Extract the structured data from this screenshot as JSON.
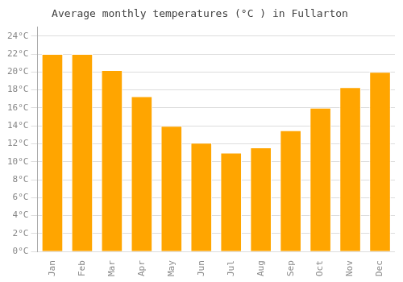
{
  "chart_data": {
    "type": "bar",
    "title": "Average monthly temperatures (°C ) in Fullarton",
    "categories": [
      "Jan",
      "Feb",
      "Mar",
      "Apr",
      "May",
      "Jun",
      "Jul",
      "Aug",
      "Sep",
      "Oct",
      "Nov",
      "Dec"
    ],
    "values": [
      22.0,
      22.0,
      20.2,
      17.3,
      14.0,
      12.1,
      11.0,
      11.6,
      13.5,
      16.0,
      18.3,
      20.0
    ],
    "color": "#FFA500",
    "ylim": [
      0,
      25
    ],
    "yticks": [
      {
        "value": 0,
        "label": "0°C"
      },
      {
        "value": 2,
        "label": "2°C"
      },
      {
        "value": 4,
        "label": "4°C"
      },
      {
        "value": 6,
        "label": "6°C"
      },
      {
        "value": 8,
        "label": "8°C"
      },
      {
        "value": 10,
        "label": "10°C"
      },
      {
        "value": 12,
        "label": "12°C"
      },
      {
        "value": 14,
        "label": "14°C"
      },
      {
        "value": 16,
        "label": "16°C"
      },
      {
        "value": 18,
        "label": "18°C"
      },
      {
        "value": 20,
        "label": "20°C"
      },
      {
        "value": 22,
        "label": "22°C"
      },
      {
        "value": 24,
        "label": "24°C"
      }
    ],
    "grid": true
  }
}
